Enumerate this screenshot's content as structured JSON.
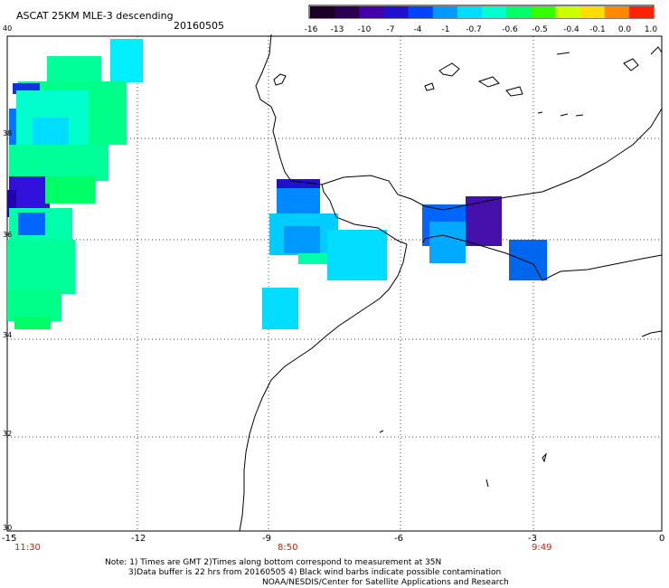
{
  "header": {
    "title": "ASCAT 25KM MLE-3 descending",
    "date": "20160505"
  },
  "colorbar": {
    "labels": [
      "-16",
      "-13",
      "-10",
      "-7",
      "-4",
      "-1",
      "-0.7",
      "-0.6",
      "-0.5",
      "-0.4",
      "-0.1",
      "0.0",
      "1.0"
    ],
    "colors": [
      "#1a0026",
      "#2b0050",
      "#4400aa",
      "#2211cc",
      "#0044ff",
      "#0099ff",
      "#00ddff",
      "#00ffcc",
      "#00ff66",
      "#33ff00",
      "#ccff00",
      "#ffdd00",
      "#ff8800",
      "#ff2200"
    ]
  },
  "map": {
    "lat_labels": [
      "40",
      "38",
      "36",
      "34",
      "32",
      "30"
    ],
    "lon_labels": [
      "-15",
      "-12",
      "-9",
      "-6",
      "-3",
      "0"
    ],
    "pass_times": [
      "11:30",
      "8:50",
      "9:49"
    ]
  },
  "notes": {
    "line1": "Note: 1) Times are GMT 2)Times along bottom correspond to measurement at 35N",
    "line2": "3)Data buffer is 22 hrs from 20160505 4) Black wind barbs indicate possible contamination",
    "line3": "NOAA/NESDIS/Center for Satellite Applications and Research"
  }
}
